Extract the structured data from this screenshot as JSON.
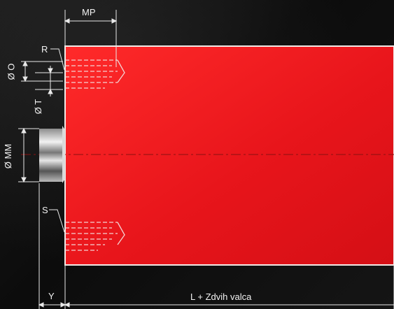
{
  "labels": {
    "mp": "MP",
    "r": "R",
    "o": "Ø O",
    "t": "Ø T",
    "mm": "Ø MM",
    "s": "S",
    "y": "Y",
    "length": "L + Zdvih valca"
  },
  "colors": {
    "body": "#e8151b",
    "body_edge": "#f2e9e6",
    "background": "#111111",
    "dimension_lines": "#e9e9e9"
  }
}
